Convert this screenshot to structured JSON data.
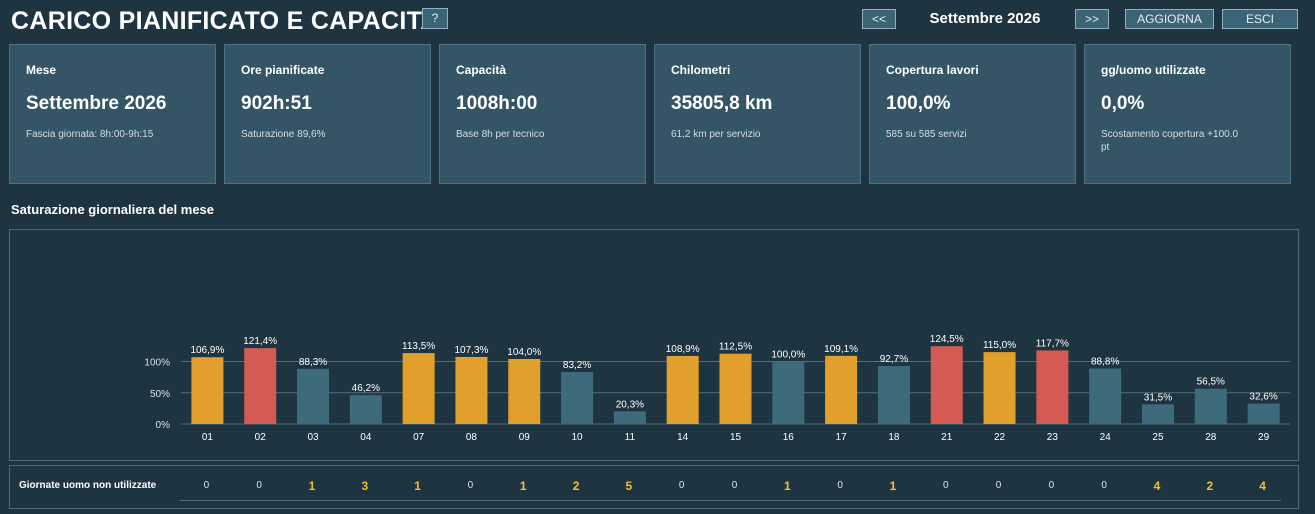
{
  "header": {
    "title": "CARICO PIANIFICATO E CAPACITA'",
    "help_label": "?",
    "prev_label": "<<",
    "next_label": ">>",
    "month": "Settembre 2026",
    "refresh_label": "AGGIORNA",
    "exit_label": "ESCI"
  },
  "cards": [
    {
      "label": "Mese",
      "value": "Settembre 2026",
      "sub": "Fascia giornata: 8h:00-9h:15"
    },
    {
      "label": "Ore pianificate",
      "value": "902h:51",
      "sub": "Saturazione 89,6%"
    },
    {
      "label": "Capacità",
      "value": "1008h:00",
      "sub": "Base 8h per tecnico"
    },
    {
      "label": "Chilometri",
      "value": "35805,8 km",
      "sub": "61,2 km per servizio"
    },
    {
      "label": "Copertura lavori",
      "value": "100,0%",
      "sub": "585 su 585 servizi"
    },
    {
      "label": "gg/uomo utilizzate",
      "value": "0,0%",
      "sub": "Scostamento copertura +100.0 pt"
    }
  ],
  "section_title": "Saturazione giornaliera del mese",
  "colors": {
    "over": "#d45b51",
    "high": "#e0a02b",
    "normal": "#3e6b7b",
    "grid": "#4e6f7d"
  },
  "chart_data": {
    "type": "bar",
    "categories": [
      "01",
      "02",
      "03",
      "04",
      "07",
      "08",
      "09",
      "10",
      "11",
      "14",
      "15",
      "16",
      "17",
      "18",
      "21",
      "22",
      "23",
      "24",
      "25",
      "28",
      "29"
    ],
    "values": [
      106.9,
      121.4,
      88.3,
      46.2,
      113.5,
      107.3,
      104.0,
      83.2,
      20.3,
      108.9,
      112.5,
      100.0,
      109.1,
      92.7,
      124.5,
      115.0,
      117.7,
      88.8,
      31.5,
      56.5,
      32.6
    ],
    "value_labels": [
      "106,9%",
      "121,4%",
      "88,3%",
      "46,2%",
      "113,5%",
      "107,3%",
      "104,0%",
      "83,2%",
      "20,3%",
      "108,9%",
      "112,5%",
      "100,0%",
      "109,1%",
      "92,7%",
      "124,5%",
      "115,0%",
      "117,7%",
      "88,8%",
      "31,5%",
      "56,5%",
      "32,6%"
    ],
    "color_classes": [
      "high",
      "over",
      "normal",
      "normal",
      "high",
      "high",
      "high",
      "normal",
      "normal",
      "high",
      "high",
      "normal",
      "high",
      "normal",
      "over",
      "high",
      "over",
      "normal",
      "normal",
      "normal",
      "normal"
    ],
    "yticks": [
      0,
      50,
      100
    ],
    "ytick_labels": [
      "0%",
      "50%",
      "100%"
    ],
    "ylim": [
      0,
      140
    ],
    "grid": true
  },
  "unused_days": {
    "label": "Giornate uomo non utilizzate",
    "values": [
      "0",
      "0",
      "1",
      "3",
      "1",
      "0",
      "1",
      "2",
      "5",
      "0",
      "0",
      "1",
      "0",
      "1",
      "0",
      "0",
      "0",
      "0",
      "4",
      "2",
      "4"
    ]
  }
}
